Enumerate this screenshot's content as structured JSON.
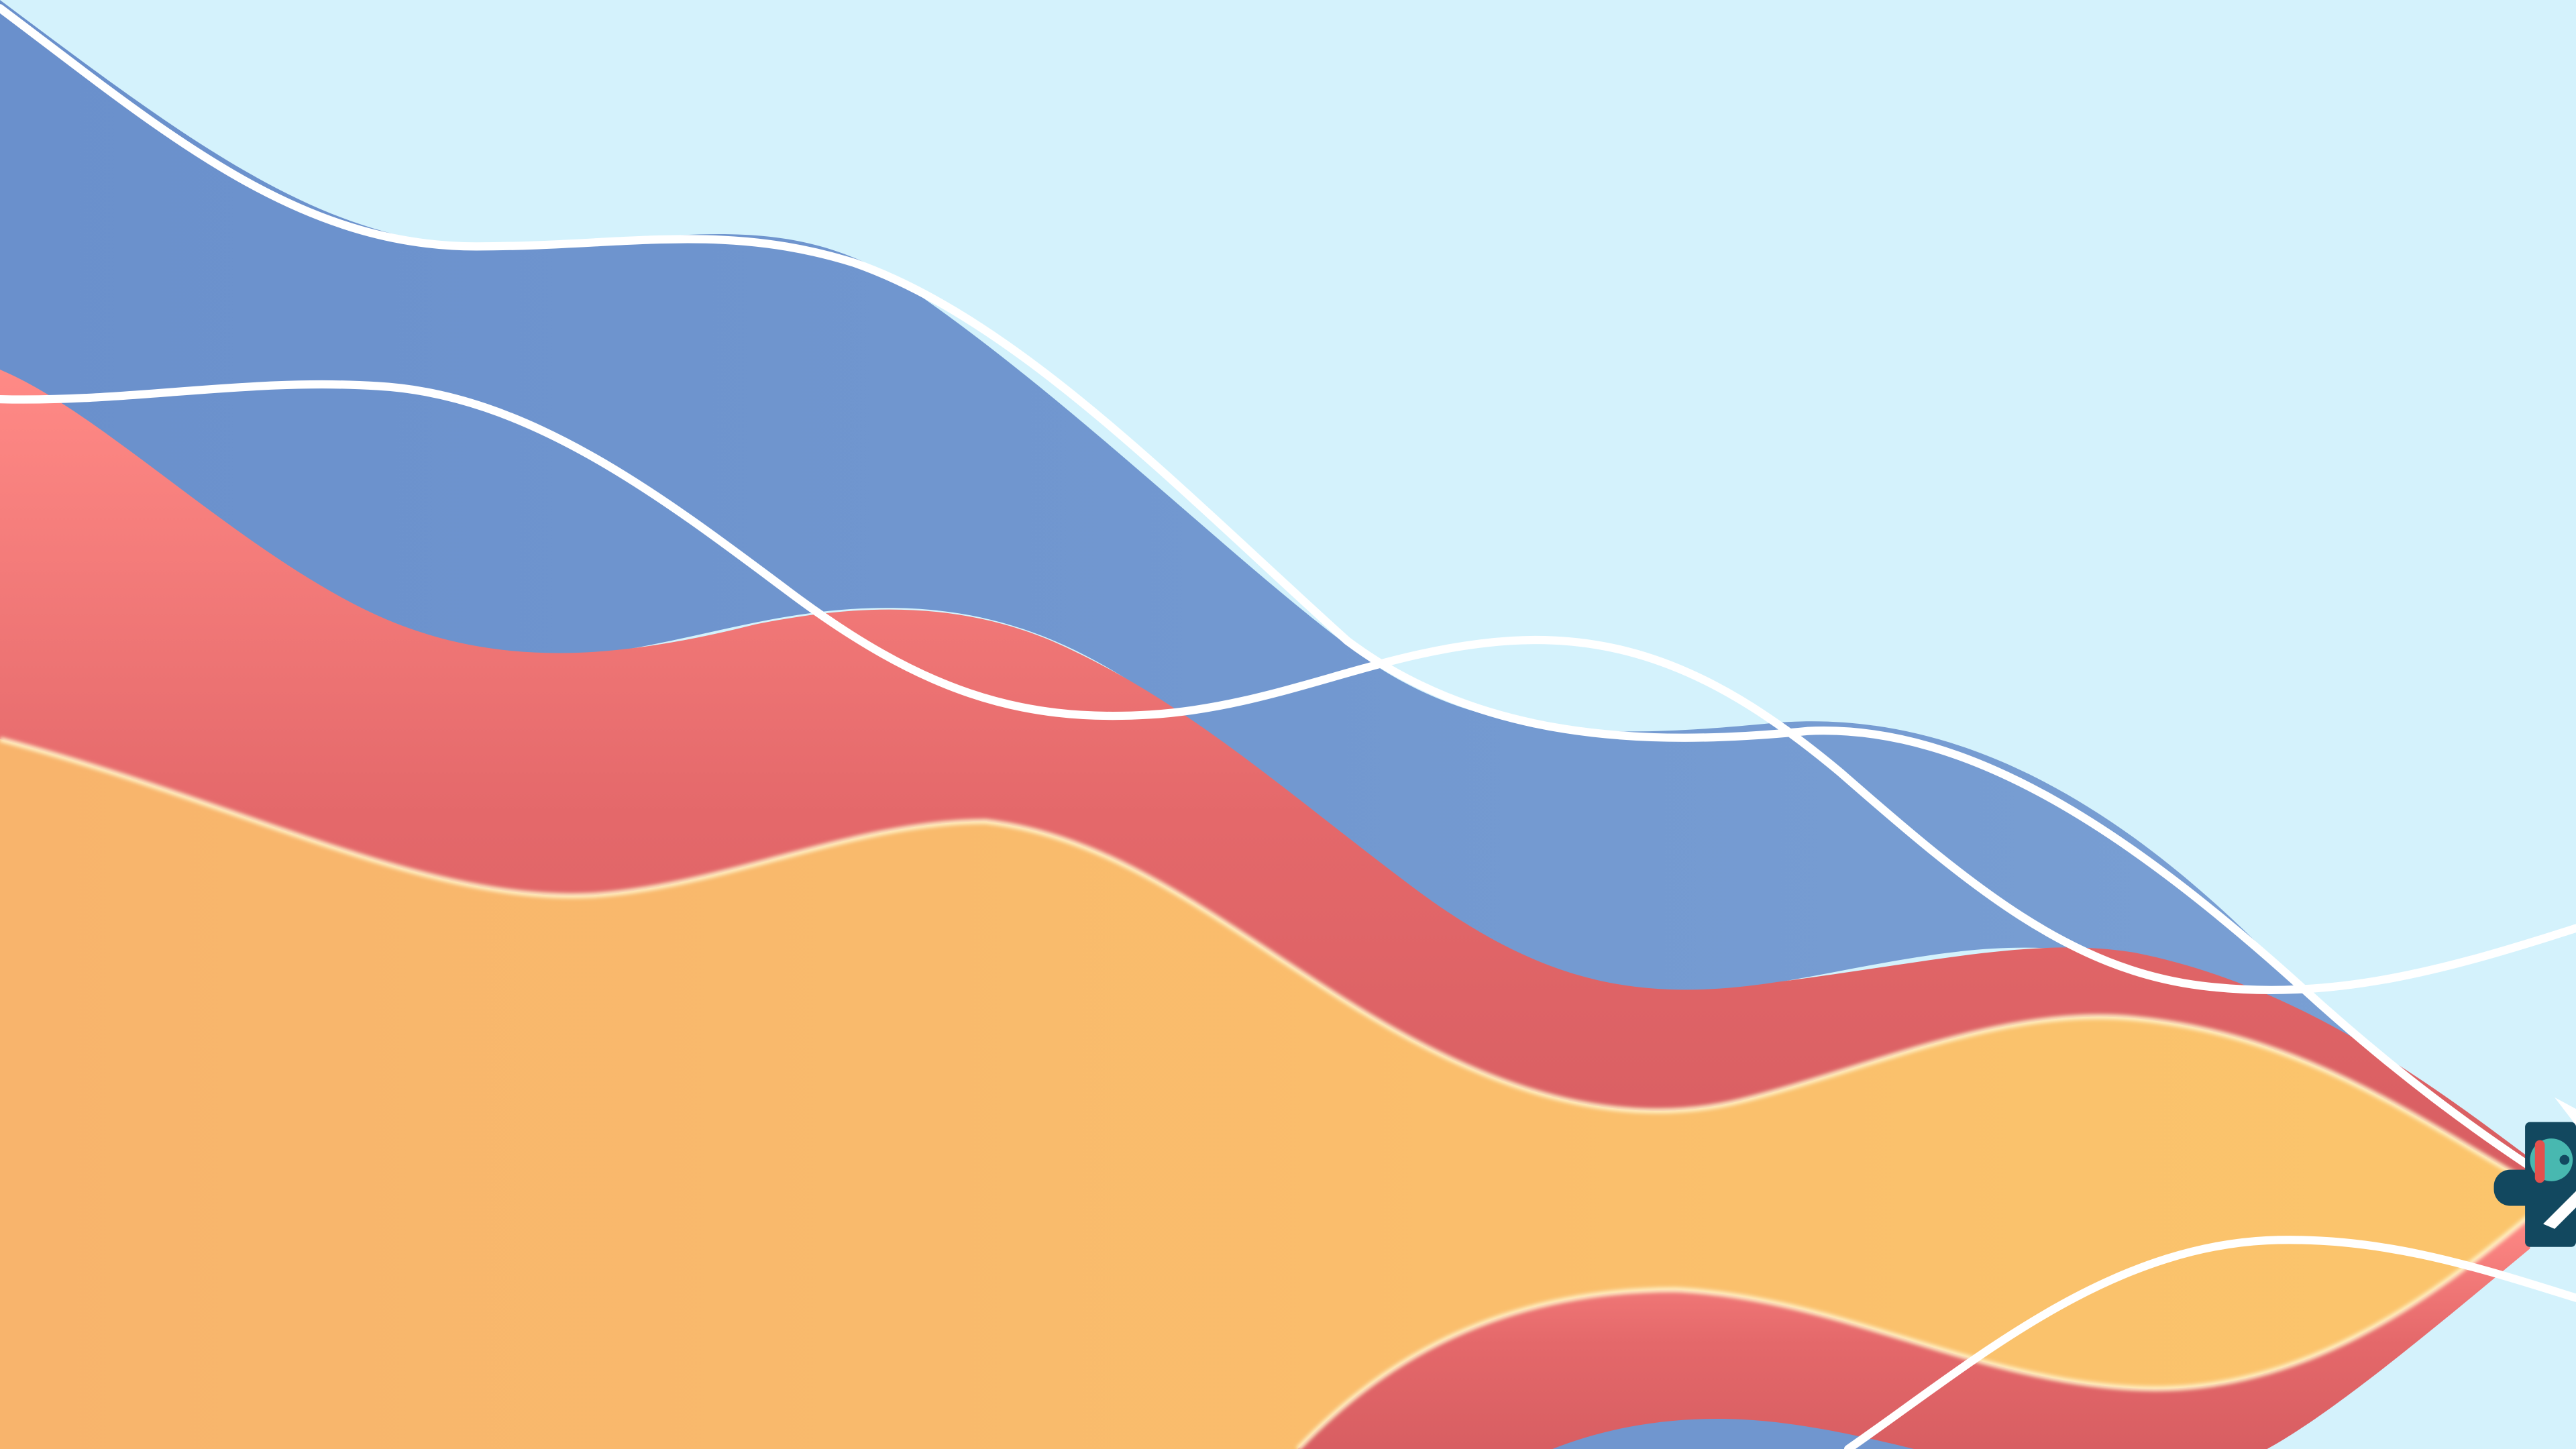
{
  "scene": {
    "description_type": "abstract wave illustration",
    "colors": {
      "sky": "#d4f2fc",
      "blue_band": "#7096cf",
      "red_band": "#e4686a",
      "red_highlight": "#ff8a86",
      "orange_band_left": "#f8b46c",
      "orange_band_right": "#fbc56c",
      "outline_glow": "#fff0c4",
      "white_line": "#ffffff",
      "figure_navy": "#12485f",
      "figure_teal": "#48b8b0",
      "figure_red": "#e4504c"
    },
    "icons": [
      "figure-icon"
    ]
  }
}
